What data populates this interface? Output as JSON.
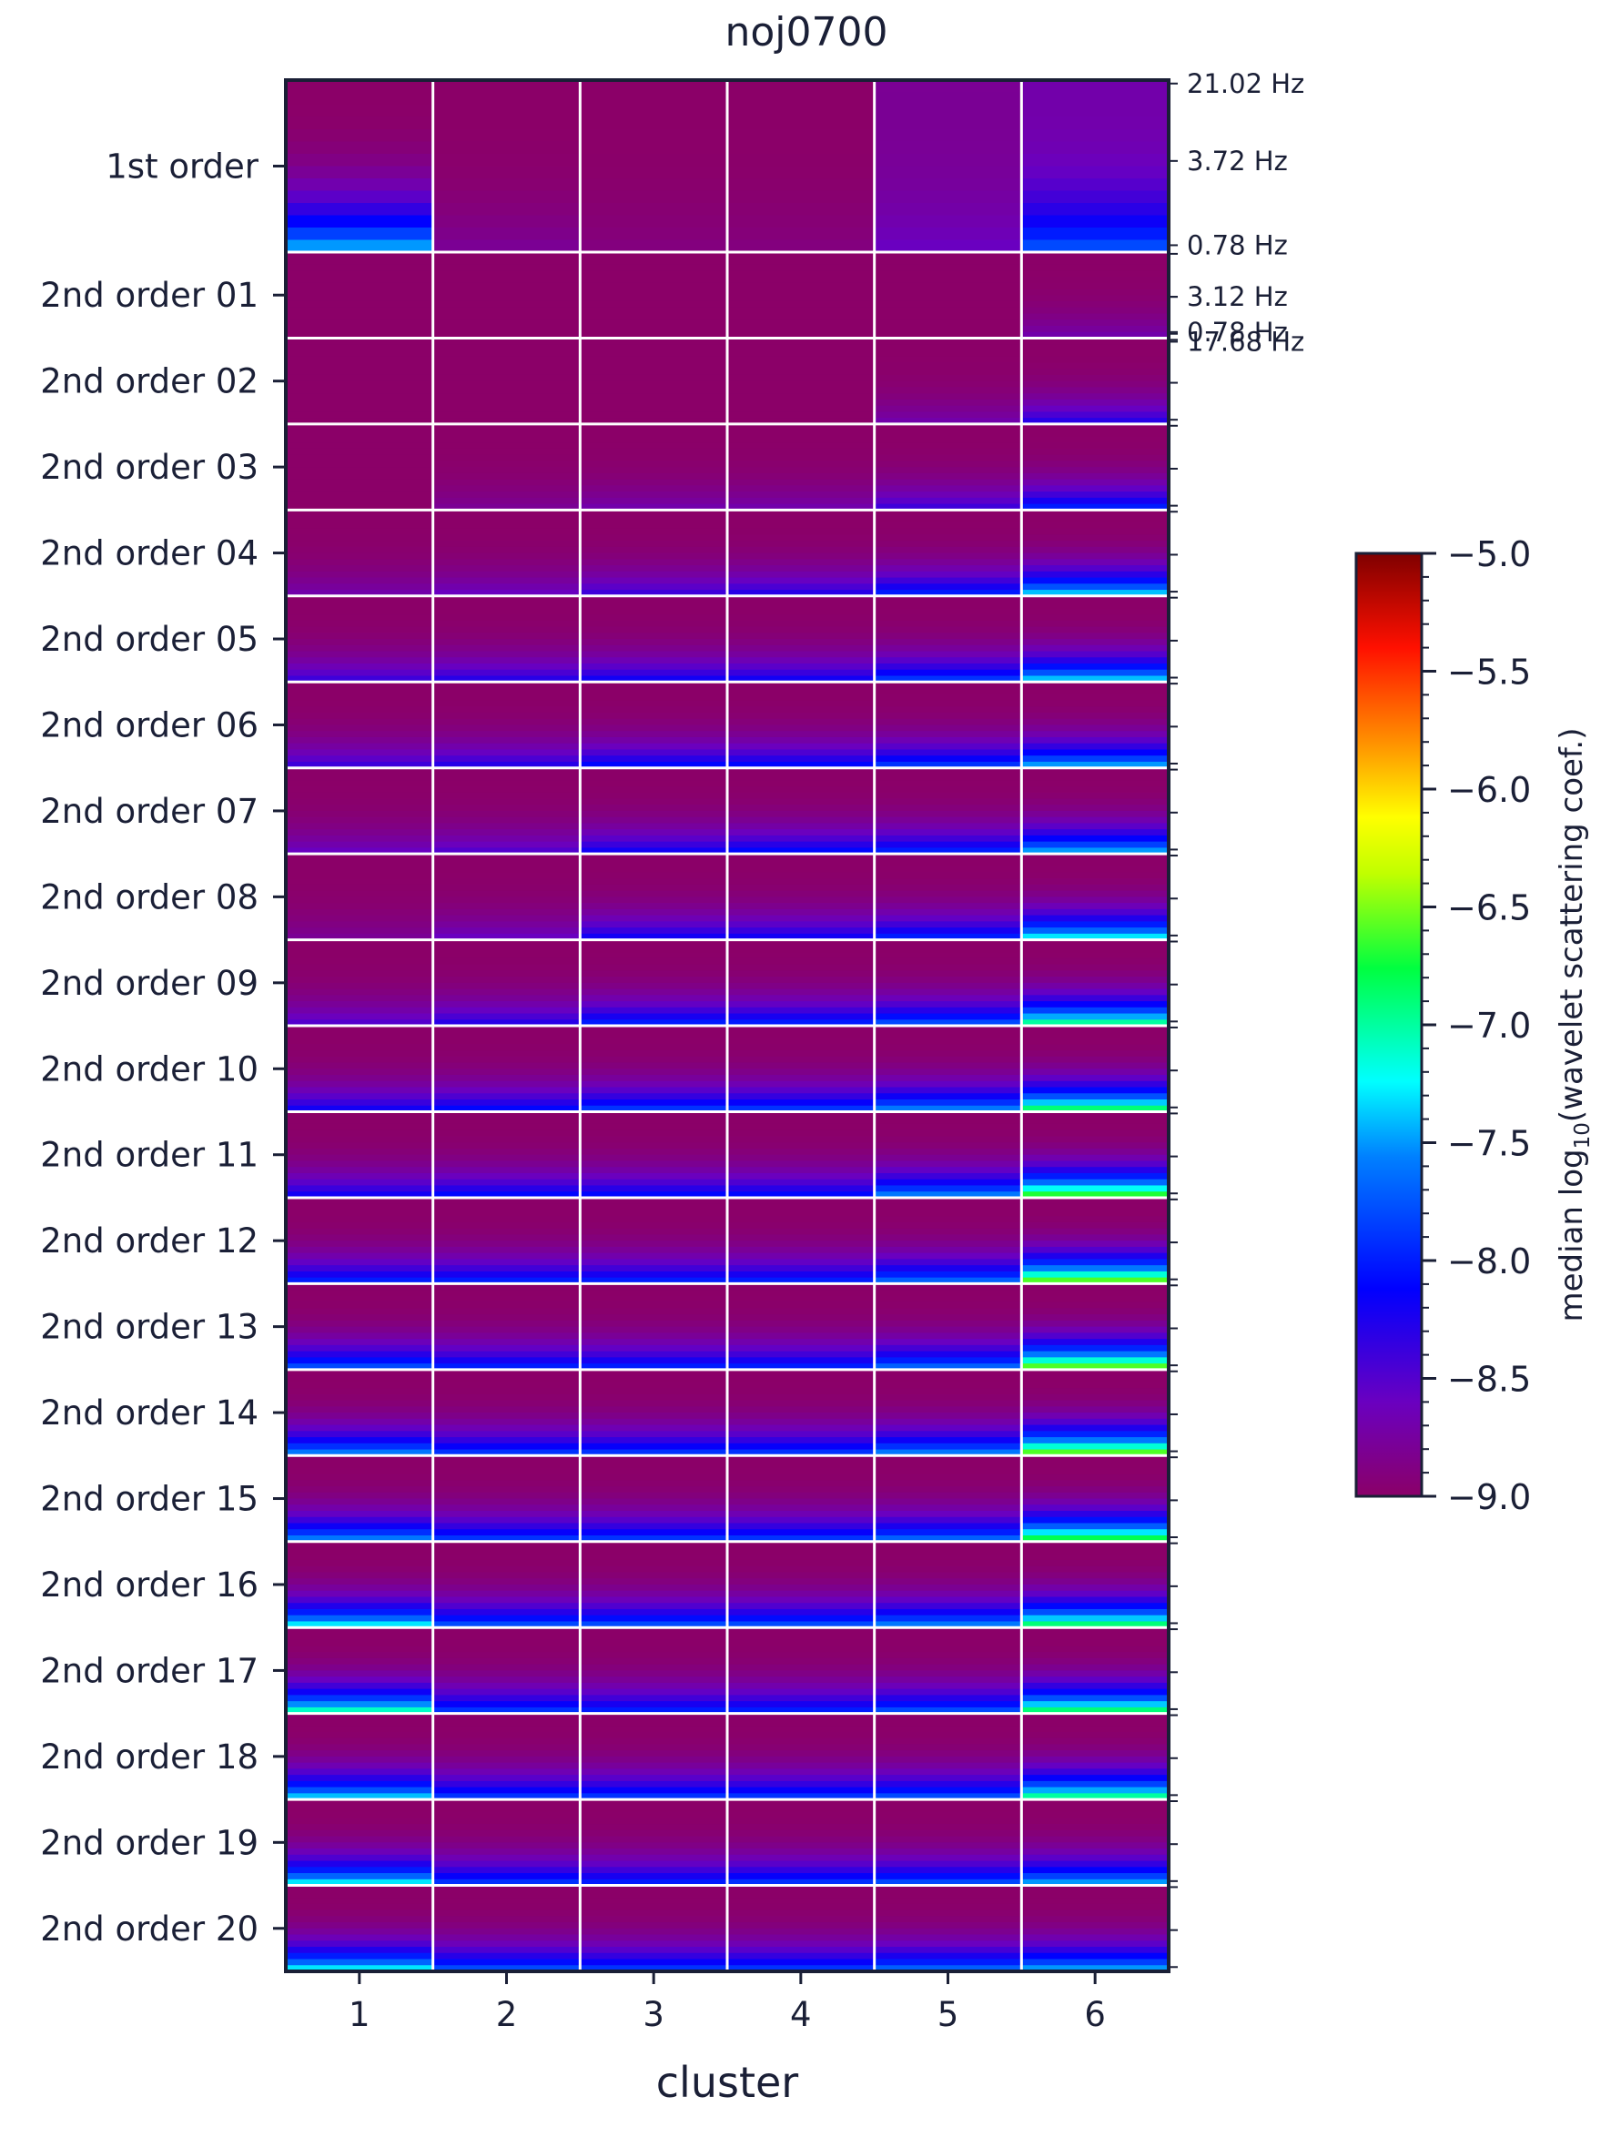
{
  "chart_data": {
    "type": "heatmap",
    "title": "noj0700",
    "xlabel": "cluster",
    "categories": [
      "1",
      "2",
      "3",
      "4",
      "5",
      "6"
    ],
    "row_labels": [
      "1st order",
      "2nd order 01",
      "2nd order 02",
      "2nd order 03",
      "2nd order 04",
      "2nd order 05",
      "2nd order 06",
      "2nd order 07",
      "2nd order 08",
      "2nd order 09",
      "2nd order 10",
      "2nd order 11",
      "2nd order 12",
      "2nd order 13",
      "2nd order 14",
      "2nd order 15",
      "2nd order 16",
      "2nd order 17",
      "2nd order 18",
      "2nd order 19",
      "2nd order 20"
    ],
    "frequency_labels": [
      "21.02 Hz",
      "3.72 Hz",
      "0.78 Hz",
      "17.68 Hz",
      "3.12 Hz",
      "0.78 Hz"
    ],
    "colorbar": {
      "label_prefix": "median log",
      "label_subscript": "10",
      "label_suffix": "(wavelet scattering coef.)",
      "range": [
        -9.0,
        -5.0
      ],
      "ticks": [
        "−5.0",
        "−5.5",
        "−6.0",
        "−6.5",
        "−7.0",
        "−7.5",
        "−8.0",
        "−8.5",
        "−9.0"
      ],
      "colormap": "jet (purple at minimum)",
      "min_color": "#8b0068",
      "max_color": "#7f0000"
    },
    "bottom_values": {
      "description": "approximate median log10 coefficient at the lowest-frequency end of each block, per cluster",
      "rows": [
        [
          -7.5,
          -8.8,
          -8.9,
          -8.9,
          -8.6,
          -7.8
        ],
        [
          -9.0,
          -9.0,
          -9.0,
          -9.0,
          -9.0,
          -8.7
        ],
        [
          -9.0,
          -9.0,
          -9.0,
          -9.0,
          -8.7,
          -8.3
        ],
        [
          -9.0,
          -8.8,
          -8.7,
          -8.7,
          -8.4,
          -8.0
        ],
        [
          -8.7,
          -8.6,
          -8.4,
          -8.3,
          -8.0,
          -7.4
        ],
        [
          -8.4,
          -8.3,
          -8.2,
          -8.2,
          -7.9,
          -7.4
        ],
        [
          -8.4,
          -8.3,
          -8.1,
          -8.1,
          -7.9,
          -7.5
        ],
        [
          -8.6,
          -8.5,
          -8.2,
          -8.1,
          -8.0,
          -7.5
        ],
        [
          -8.8,
          -8.6,
          -8.2,
          -8.2,
          -8.0,
          -7.3
        ],
        [
          -8.5,
          -8.3,
          -8.0,
          -8.0,
          -7.8,
          -7.0
        ],
        [
          -8.2,
          -8.1,
          -7.9,
          -7.9,
          -7.6,
          -6.9
        ],
        [
          -8.2,
          -8.1,
          -8.1,
          -8.1,
          -7.6,
          -6.7
        ],
        [
          -8.0,
          -8.0,
          -8.0,
          -8.0,
          -7.7,
          -6.6
        ],
        [
          -7.8,
          -8.0,
          -8.0,
          -8.0,
          -7.7,
          -6.6
        ],
        [
          -7.6,
          -7.9,
          -7.9,
          -7.9,
          -7.6,
          -6.6
        ],
        [
          -7.6,
          -7.9,
          -7.9,
          -7.9,
          -7.7,
          -6.8
        ],
        [
          -7.3,
          -7.8,
          -7.8,
          -7.8,
          -7.6,
          -6.9
        ],
        [
          -7.1,
          -7.9,
          -8.0,
          -8.0,
          -7.8,
          -6.9
        ],
        [
          -7.4,
          -7.9,
          -7.9,
          -7.9,
          -7.8,
          -7.0
        ],
        [
          -7.3,
          -7.9,
          -8.0,
          -7.9,
          -7.8,
          -7.5
        ],
        [
          -7.3,
          -7.8,
          -7.9,
          -7.9,
          -7.7,
          -7.5
        ]
      ]
    },
    "top_values": {
      "description": "approximate median log10 coefficient at the highest-frequency end of each block, per cluster",
      "rows": [
        [
          -9.0,
          -9.0,
          -9.0,
          -9.0,
          -8.8,
          -8.7
        ],
        [
          -9.0,
          -9.0,
          -9.0,
          -9.0,
          -9.0,
          -9.0
        ],
        [
          -9.0,
          -9.0,
          -9.0,
          -9.0,
          -9.0,
          -9.0
        ],
        [
          -9.0,
          -9.0,
          -9.0,
          -9.0,
          -9.0,
          -9.0
        ],
        [
          -9.0,
          -9.0,
          -9.0,
          -9.0,
          -9.0,
          -9.0
        ],
        [
          -9.0,
          -9.0,
          -9.0,
          -9.0,
          -9.0,
          -9.0
        ],
        [
          -9.0,
          -9.0,
          -9.0,
          -9.0,
          -9.0,
          -9.0
        ],
        [
          -9.0,
          -9.0,
          -9.0,
          -9.0,
          -9.0,
          -9.0
        ],
        [
          -9.0,
          -9.0,
          -9.0,
          -9.0,
          -9.0,
          -9.0
        ],
        [
          -9.0,
          -9.0,
          -9.0,
          -9.0,
          -9.0,
          -9.0
        ],
        [
          -9.0,
          -9.0,
          -9.0,
          -9.0,
          -9.0,
          -9.0
        ],
        [
          -9.0,
          -9.0,
          -9.0,
          -9.0,
          -9.0,
          -9.0
        ],
        [
          -9.0,
          -9.0,
          -9.0,
          -9.0,
          -9.0,
          -9.0
        ],
        [
          -9.0,
          -9.0,
          -9.0,
          -9.0,
          -9.0,
          -9.0
        ],
        [
          -9.0,
          -9.0,
          -9.0,
          -9.0,
          -9.0,
          -9.0
        ],
        [
          -9.0,
          -9.0,
          -9.0,
          -9.0,
          -9.0,
          -9.0
        ],
        [
          -9.0,
          -9.0,
          -9.0,
          -9.0,
          -9.0,
          -9.0
        ],
        [
          -9.0,
          -9.0,
          -9.0,
          -9.0,
          -9.0,
          -9.0
        ],
        [
          -9.0,
          -9.0,
          -9.0,
          -9.0,
          -9.0,
          -9.0
        ],
        [
          -9.0,
          -9.0,
          -9.0,
          -9.0,
          -9.0,
          -9.0
        ],
        [
          -9.0,
          -9.0,
          -9.0,
          -9.0,
          -9.0,
          -9.0
        ]
      ]
    }
  }
}
